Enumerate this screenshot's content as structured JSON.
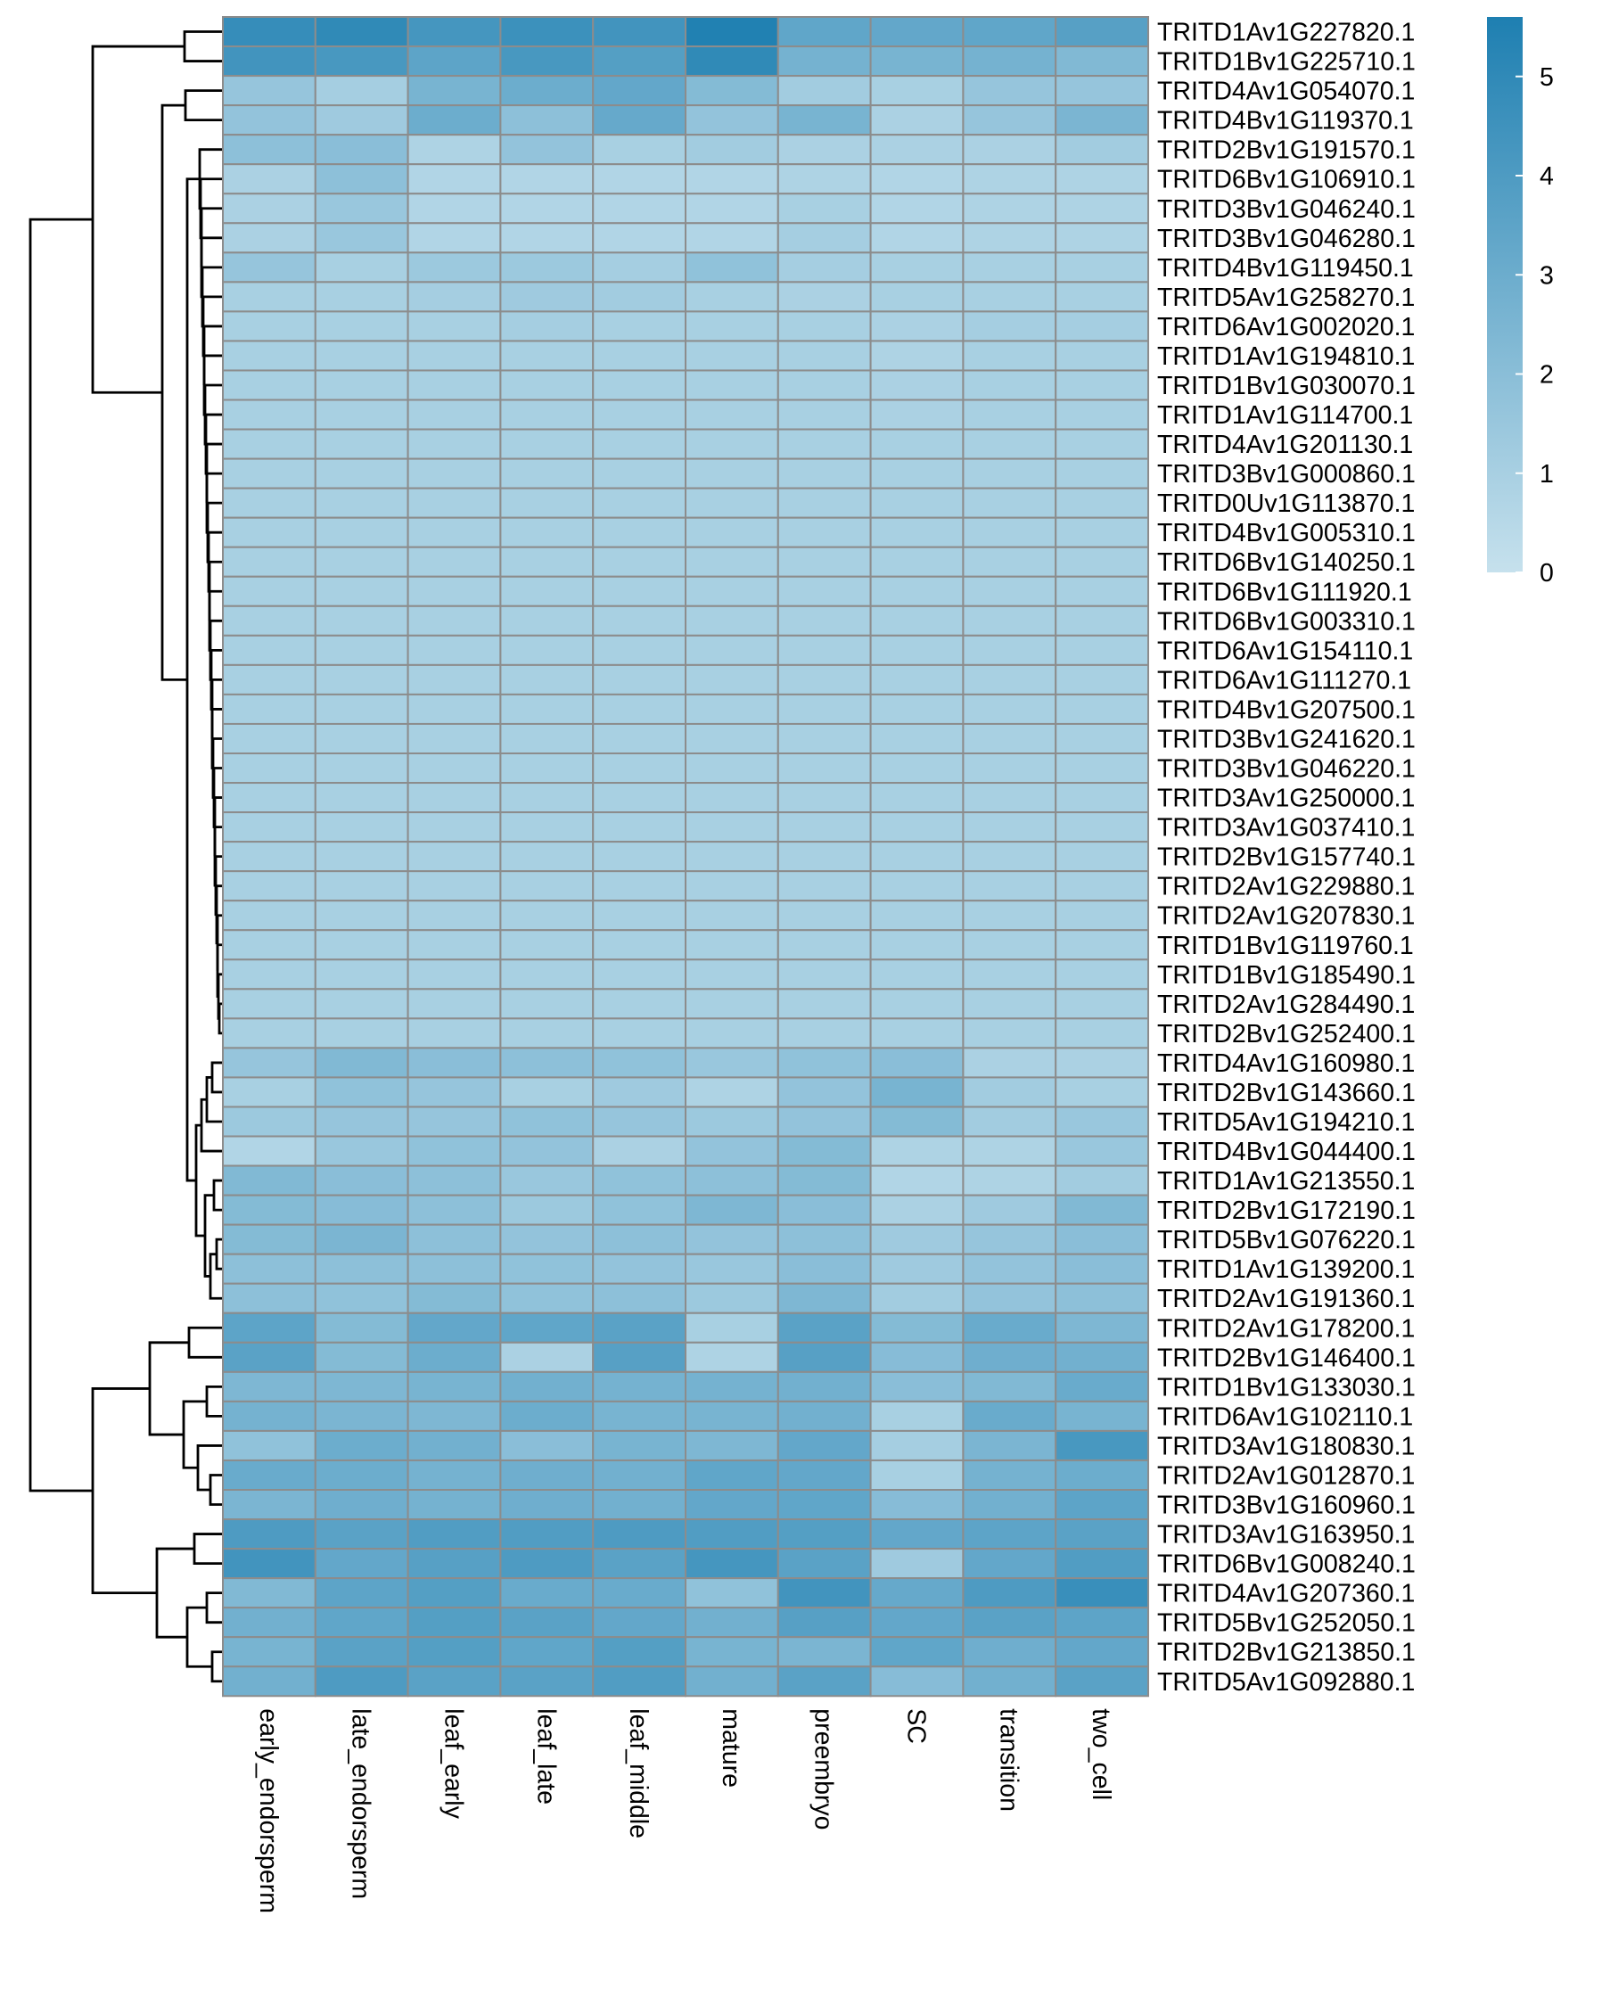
{
  "chart_data": {
    "type": "heatmap",
    "title": "",
    "columns": [
      "early_endorsperm",
      "late_endorsperm",
      "leaf_early",
      "leaf_late",
      "leaf_middle",
      "mature",
      "preembryo",
      "SC",
      "transition",
      "two_cell"
    ],
    "rows": [
      "TRITD1Av1G227820.1",
      "TRITD1Bv1G225710.1",
      "TRITD4Av1G054070.1",
      "TRITD4Bv1G119370.1",
      "TRITD2Bv1G191570.1",
      "TRITD6Bv1G106910.1",
      "TRITD3Bv1G046240.1",
      "TRITD3Bv1G046280.1",
      "TRITD4Bv1G119450.1",
      "TRITD5Av1G258270.1",
      "TRITD6Av1G002020.1",
      "TRITD1Av1G194810.1",
      "TRITD1Bv1G030070.1",
      "TRITD1Av1G114700.1",
      "TRITD4Av1G201130.1",
      "TRITD3Bv1G000860.1",
      "TRITD0Uv1G113870.1",
      "TRITD4Bv1G005310.1",
      "TRITD6Bv1G140250.1",
      "TRITD6Bv1G111920.1",
      "TRITD6Bv1G003310.1",
      "TRITD6Av1G154110.1",
      "TRITD6Av1G111270.1",
      "TRITD4Bv1G207500.1",
      "TRITD3Bv1G241620.1",
      "TRITD3Bv1G046220.1",
      "TRITD3Av1G250000.1",
      "TRITD3Av1G037410.1",
      "TRITD2Bv1G157740.1",
      "TRITD2Av1G229880.1",
      "TRITD2Av1G207830.1",
      "TRITD1Bv1G119760.1",
      "TRITD1Bv1G185490.1",
      "TRITD2Av1G284490.1",
      "TRITD2Bv1G252400.1",
      "TRITD4Av1G160980.1",
      "TRITD2Bv1G143660.1",
      "TRITD5Av1G194210.1",
      "TRITD4Bv1G044400.1",
      "TRITD1Av1G213550.1",
      "TRITD2Bv1G172190.1",
      "TRITD5Bv1G076220.1",
      "TRITD1Av1G139200.1",
      "TRITD2Av1G191360.1",
      "TRITD2Av1G178200.1",
      "TRITD2Bv1G146400.1",
      "TRITD1Bv1G133030.1",
      "TRITD6Av1G102110.1",
      "TRITD3Av1G180830.1",
      "TRITD2Av1G012870.1",
      "TRITD3Bv1G160960.1",
      "TRITD3Av1G163950.1",
      "TRITD6Bv1G008240.1",
      "TRITD4Av1G207360.1",
      "TRITD5Bv1G252050.1",
      "TRITD2Bv1G213850.1",
      "TRITD5Av1G092880.1"
    ],
    "values": [
      [
        4.8,
        5.0,
        4.3,
        4.6,
        4.4,
        5.5,
        3.4,
        3.3,
        3.4,
        3.7
      ],
      [
        4.4,
        4.2,
        3.5,
        4.2,
        3.8,
        5.0,
        2.7,
        2.6,
        2.7,
        2.3
      ],
      [
        1.6,
        1.1,
        2.6,
        3.0,
        3.3,
        2.2,
        1.2,
        1.0,
        1.6,
        1.6
      ],
      [
        1.7,
        1.3,
        3.0,
        1.9,
        3.2,
        1.7,
        2.6,
        0.9,
        1.6,
        2.5
      ],
      [
        1.9,
        2.0,
        0.8,
        1.7,
        1.0,
        1.2,
        0.9,
        0.9,
        0.9,
        1.2
      ],
      [
        0.9,
        1.9,
        0.7,
        0.7,
        0.7,
        0.7,
        0.8,
        0.7,
        0.8,
        0.8
      ],
      [
        0.9,
        1.5,
        0.7,
        0.7,
        0.7,
        0.7,
        1.0,
        0.7,
        0.8,
        0.8
      ],
      [
        0.9,
        1.5,
        0.7,
        0.7,
        0.7,
        0.7,
        1.1,
        0.7,
        0.8,
        0.8
      ],
      [
        1.6,
        1.0,
        1.4,
        1.4,
        1.1,
        1.8,
        1.1,
        1.0,
        1.0,
        1.0
      ],
      [
        1.0,
        1.0,
        1.1,
        1.3,
        1.2,
        1.0,
        0.9,
        1.0,
        1.0,
        1.0
      ],
      [
        1.0,
        1.0,
        1.0,
        1.1,
        1.0,
        1.0,
        1.0,
        0.9,
        1.1,
        1.1
      ],
      [
        1.0,
        1.0,
        1.0,
        1.0,
        1.0,
        1.0,
        1.0,
        0.8,
        1.0,
        1.0
      ],
      [
        1.0,
        1.0,
        1.0,
        1.0,
        1.0,
        1.0,
        1.0,
        0.9,
        1.0,
        1.0
      ],
      [
        1.0,
        1.0,
        1.0,
        1.0,
        1.0,
        1.0,
        1.0,
        0.9,
        1.0,
        1.0
      ],
      [
        1.0,
        1.0,
        1.0,
        1.0,
        1.0,
        1.0,
        1.0,
        1.0,
        1.0,
        1.0
      ],
      [
        1.0,
        1.0,
        1.0,
        1.0,
        1.0,
        1.0,
        1.0,
        1.0,
        1.0,
        1.0
      ],
      [
        1.0,
        1.0,
        1.0,
        1.0,
        1.0,
        1.0,
        1.0,
        1.0,
        1.0,
        1.0
      ],
      [
        1.0,
        1.0,
        1.0,
        1.0,
        1.0,
        1.0,
        1.0,
        1.0,
        1.0,
        1.0
      ],
      [
        1.0,
        1.0,
        1.0,
        1.0,
        1.0,
        1.0,
        1.0,
        1.0,
        1.0,
        1.0
      ],
      [
        1.0,
        1.0,
        1.0,
        1.0,
        1.0,
        1.0,
        1.0,
        1.0,
        1.0,
        1.0
      ],
      [
        1.0,
        1.0,
        1.0,
        1.0,
        1.0,
        1.0,
        1.0,
        1.0,
        1.0,
        1.0
      ],
      [
        1.0,
        1.0,
        1.0,
        1.0,
        1.0,
        1.0,
        1.0,
        1.0,
        1.0,
        1.0
      ],
      [
        1.0,
        1.0,
        1.0,
        1.0,
        1.0,
        1.0,
        1.0,
        1.0,
        1.0,
        1.0
      ],
      [
        1.0,
        1.0,
        1.0,
        1.0,
        1.0,
        1.0,
        1.0,
        1.0,
        1.0,
        1.0
      ],
      [
        1.0,
        1.0,
        1.0,
        1.0,
        1.0,
        1.0,
        1.0,
        1.0,
        1.0,
        1.0
      ],
      [
        1.0,
        1.0,
        1.0,
        1.0,
        1.0,
        1.0,
        1.0,
        1.0,
        1.0,
        1.0
      ],
      [
        1.0,
        1.0,
        1.0,
        1.0,
        1.0,
        1.0,
        1.0,
        1.0,
        1.0,
        1.0
      ],
      [
        1.0,
        1.0,
        1.0,
        1.0,
        1.0,
        1.0,
        1.0,
        1.0,
        1.0,
        1.0
      ],
      [
        1.0,
        1.0,
        1.0,
        1.0,
        1.0,
        1.0,
        1.0,
        1.0,
        1.0,
        1.0
      ],
      [
        1.0,
        1.0,
        1.0,
        1.0,
        1.0,
        1.0,
        1.0,
        1.0,
        1.0,
        1.0
      ],
      [
        1.0,
        1.0,
        1.0,
        1.0,
        1.0,
        1.0,
        1.0,
        1.0,
        1.0,
        1.0
      ],
      [
        1.0,
        1.0,
        1.0,
        1.0,
        1.0,
        1.0,
        1.0,
        1.0,
        1.0,
        1.0
      ],
      [
        1.0,
        1.0,
        1.0,
        1.0,
        1.0,
        1.0,
        1.0,
        1.0,
        1.0,
        1.0
      ],
      [
        1.0,
        1.0,
        1.0,
        1.0,
        1.0,
        1.0,
        1.0,
        1.0,
        1.0,
        1.0
      ],
      [
        1.0,
        1.0,
        1.0,
        1.0,
        1.0,
        1.0,
        1.0,
        1.0,
        1.0,
        1.0
      ],
      [
        1.6,
        2.3,
        2.0,
        1.9,
        1.8,
        1.5,
        1.8,
        2.0,
        0.9,
        0.9
      ],
      [
        1.0,
        1.8,
        1.6,
        1.0,
        1.3,
        0.8,
        1.7,
        2.6,
        1.2,
        1.0
      ],
      [
        1.4,
        1.6,
        1.6,
        1.8,
        1.6,
        1.4,
        1.7,
        2.2,
        1.2,
        1.5
      ],
      [
        0.7,
        1.5,
        1.8,
        1.7,
        0.9,
        1.7,
        2.2,
        0.8,
        0.8,
        1.5
      ],
      [
        2.3,
        2.0,
        1.9,
        1.5,
        1.8,
        1.9,
        2.2,
        0.7,
        0.8,
        1.2
      ],
      [
        2.2,
        2.1,
        1.9,
        1.4,
        1.8,
        2.4,
        2.0,
        0.9,
        1.3,
        2.3
      ],
      [
        2.2,
        2.5,
        1.9,
        1.7,
        1.9,
        1.7,
        1.9,
        1.3,
        1.6,
        2.0
      ],
      [
        1.9,
        1.9,
        1.9,
        1.8,
        1.7,
        1.5,
        2.0,
        1.3,
        1.7,
        2.0
      ],
      [
        1.9,
        1.8,
        2.2,
        1.8,
        1.9,
        1.4,
        2.4,
        1.2,
        1.7,
        1.9
      ],
      [
        3.5,
        2.2,
        3.3,
        3.4,
        3.6,
        1.0,
        3.6,
        2.2,
        3.1,
        2.4
      ],
      [
        3.6,
        2.2,
        3.0,
        0.9,
        3.7,
        0.8,
        3.7,
        2.1,
        2.9,
        2.8
      ],
      [
        2.4,
        2.4,
        2.6,
        2.8,
        2.7,
        2.7,
        2.8,
        2.0,
        2.3,
        3.1
      ],
      [
        2.7,
        2.5,
        2.4,
        3.0,
        2.6,
        2.6,
        2.8,
        1.0,
        3.1,
        2.6
      ],
      [
        1.8,
        3.0,
        2.8,
        2.0,
        2.6,
        2.4,
        3.3,
        1.1,
        2.5,
        4.2
      ],
      [
        3.1,
        3.0,
        2.7,
        2.9,
        2.8,
        3.4,
        3.3,
        1.0,
        2.7,
        3.0
      ],
      [
        2.5,
        2.9,
        2.7,
        2.9,
        2.8,
        3.3,
        3.4,
        2.1,
        2.8,
        3.5
      ],
      [
        4.0,
        3.6,
        3.9,
        3.9,
        4.0,
        3.9,
        3.8,
        3.3,
        3.5,
        3.6
      ],
      [
        4.4,
        3.3,
        3.7,
        4.0,
        3.6,
        4.3,
        3.6,
        1.3,
        3.3,
        3.9
      ],
      [
        2.3,
        3.5,
        3.8,
        3.1,
        3.1,
        1.8,
        4.4,
        3.2,
        4.0,
        4.7
      ],
      [
        2.8,
        3.4,
        3.8,
        3.6,
        3.3,
        2.8,
        3.7,
        3.3,
        3.6,
        3.5
      ],
      [
        2.6,
        3.6,
        3.8,
        3.4,
        3.8,
        2.6,
        2.5,
        3.4,
        2.9,
        3.3
      ],
      [
        2.8,
        4.0,
        3.6,
        3.6,
        3.9,
        2.8,
        3.6,
        2.1,
        2.8,
        3.6
      ]
    ],
    "legend": {
      "position": "top-right",
      "min": 0,
      "max": 5.6,
      "ticks": [
        0,
        1,
        2,
        3,
        4,
        5
      ],
      "color_low": "#c6e1ed",
      "color_high": "#1e7fb1"
    },
    "grid_color": "#8c8c8c",
    "row_dendrogram": "left",
    "column_dendrogram": "none"
  }
}
